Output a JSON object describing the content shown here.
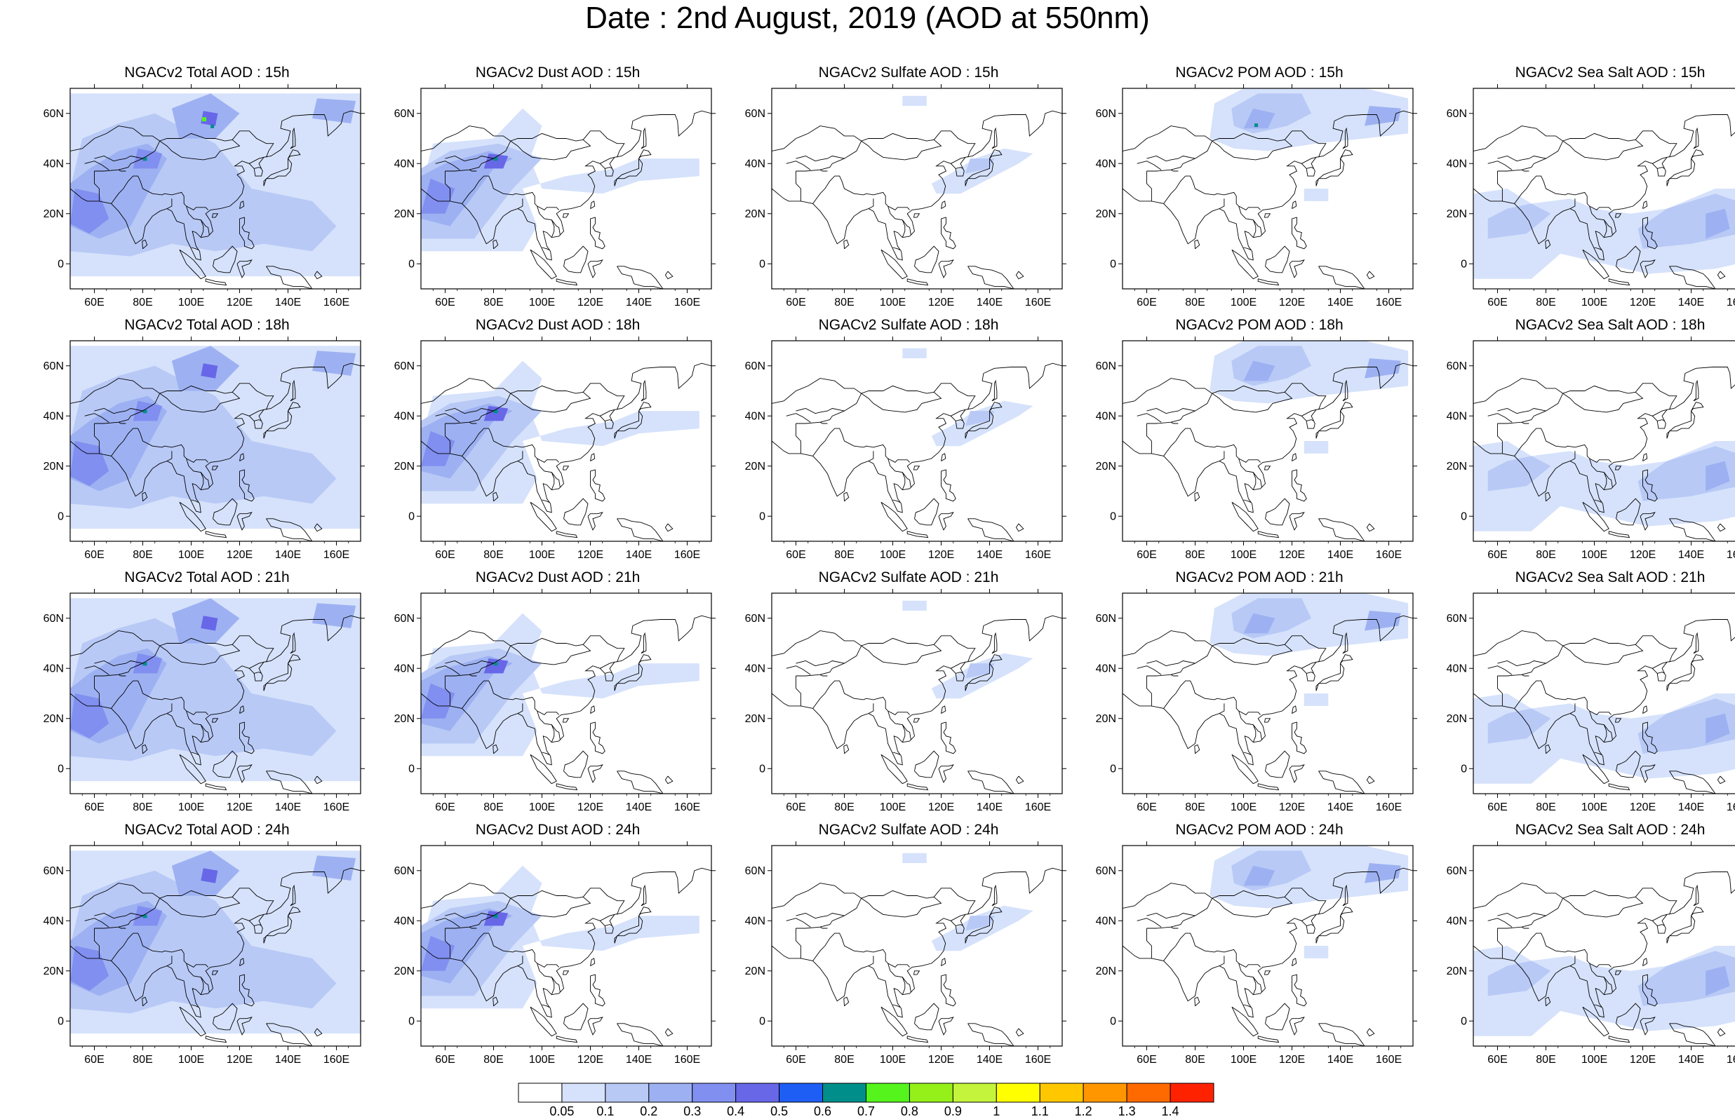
{
  "page": {
    "title": "Date : 2nd August, 2019 (AOD at 550nm)"
  },
  "map": {
    "lon_range": [
      50,
      170
    ],
    "lat_range": [
      -10,
      70
    ],
    "lon_ticks": [
      "60E",
      "80E",
      "100E",
      "120E",
      "140E",
      "160E"
    ],
    "lat_ticks": [
      "60N",
      "40N",
      "20N",
      "0"
    ]
  },
  "panels": [
    {
      "title": "NGACv2 Total AOD : 15h",
      "field": "total",
      "hour": "15h"
    },
    {
      "title": "NGACv2 Dust AOD : 15h",
      "field": "dust",
      "hour": "15h"
    },
    {
      "title": "NGACv2 Sulfate AOD : 15h",
      "field": "sulfate",
      "hour": "15h"
    },
    {
      "title": "NGACv2 POM AOD : 15h",
      "field": "pom",
      "hour": "15h"
    },
    {
      "title": "NGACv2 Sea Salt AOD : 15h",
      "field": "seasalt",
      "hour": "15h"
    },
    {
      "title": "NGACv2 Total AOD : 18h",
      "field": "total",
      "hour": "18h"
    },
    {
      "title": "NGACv2 Dust AOD : 18h",
      "field": "dust",
      "hour": "18h"
    },
    {
      "title": "NGACv2 Sulfate AOD : 18h",
      "field": "sulfate",
      "hour": "18h"
    },
    {
      "title": "NGACv2 POM AOD : 18h",
      "field": "pom",
      "hour": "18h"
    },
    {
      "title": "NGACv2 Sea Salt AOD : 18h",
      "field": "seasalt",
      "hour": "18h"
    },
    {
      "title": "NGACv2 Total AOD : 21h",
      "field": "total",
      "hour": "21h"
    },
    {
      "title": "NGACv2 Dust AOD : 21h",
      "field": "dust",
      "hour": "21h"
    },
    {
      "title": "NGACv2 Sulfate AOD : 21h",
      "field": "sulfate",
      "hour": "21h"
    },
    {
      "title": "NGACv2 POM AOD : 21h",
      "field": "pom",
      "hour": "21h"
    },
    {
      "title": "NGACv2 Sea Salt AOD : 21h",
      "field": "seasalt",
      "hour": "21h"
    },
    {
      "title": "NGACv2 Total AOD : 24h",
      "field": "total",
      "hour": "24h"
    },
    {
      "title": "NGACv2 Dust AOD : 24h",
      "field": "dust",
      "hour": "24h"
    },
    {
      "title": "NGACv2 Sulfate AOD : 24h",
      "field": "sulfate",
      "hour": "24h"
    },
    {
      "title": "NGACv2 POM AOD : 24h",
      "field": "pom",
      "hour": "24h"
    },
    {
      "title": "NGACv2 Sea Salt  AOD : 24h",
      "field": "seasalt",
      "hour": "24h"
    }
  ],
  "colorbar": {
    "labels": [
      "0.05",
      "0.1",
      "0.2",
      "0.3",
      "0.4",
      "0.5",
      "0.6",
      "0.7",
      "0.8",
      "0.9",
      "1",
      "1.1",
      "1.2",
      "1.3",
      "1.4"
    ],
    "colors": [
      "#ffffff",
      "#d6e2fb",
      "#b8c9f6",
      "#9db1f2",
      "#818ff0",
      "#6767e8",
      "#1f5ef5",
      "#008e8a",
      "#55f41c",
      "#95f01a",
      "#c4f43c",
      "#ffff00",
      "#ffc700",
      "#ff9600",
      "#ff6a00",
      "#ff2200"
    ]
  }
}
